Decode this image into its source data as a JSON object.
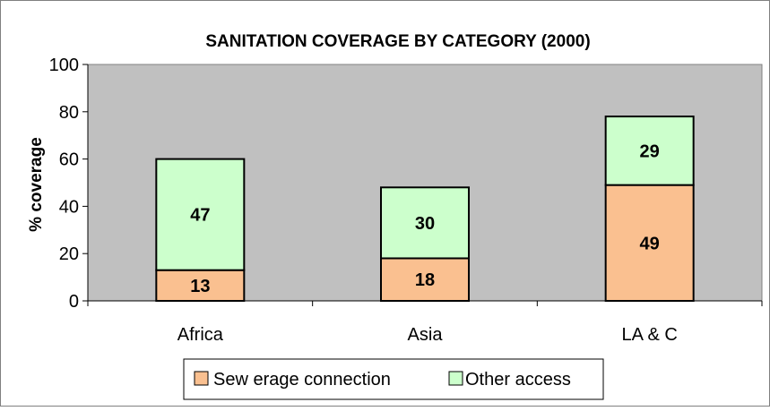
{
  "chart_data": {
    "type": "bar",
    "stacked": true,
    "title": "SANITATION COVERAGE BY CATEGORY (2000)",
    "xlabel": "",
    "ylabel": "% coverage",
    "categories": [
      "Africa",
      "Asia",
      "LA & C"
    ],
    "series": [
      {
        "name": "Sew erage connection",
        "values": [
          13,
          18,
          49
        ],
        "color": "#fac090"
      },
      {
        "name": "Other access",
        "values": [
          47,
          30,
          29
        ],
        "color": "#ccffcc"
      }
    ],
    "ylim": [
      0,
      100
    ],
    "yticks": [
      "0",
      "20",
      "40",
      "60",
      "80",
      "100"
    ],
    "grid": false,
    "plot_background": "#c0c0c0",
    "legend_position": "bottom",
    "data_labels": true
  }
}
